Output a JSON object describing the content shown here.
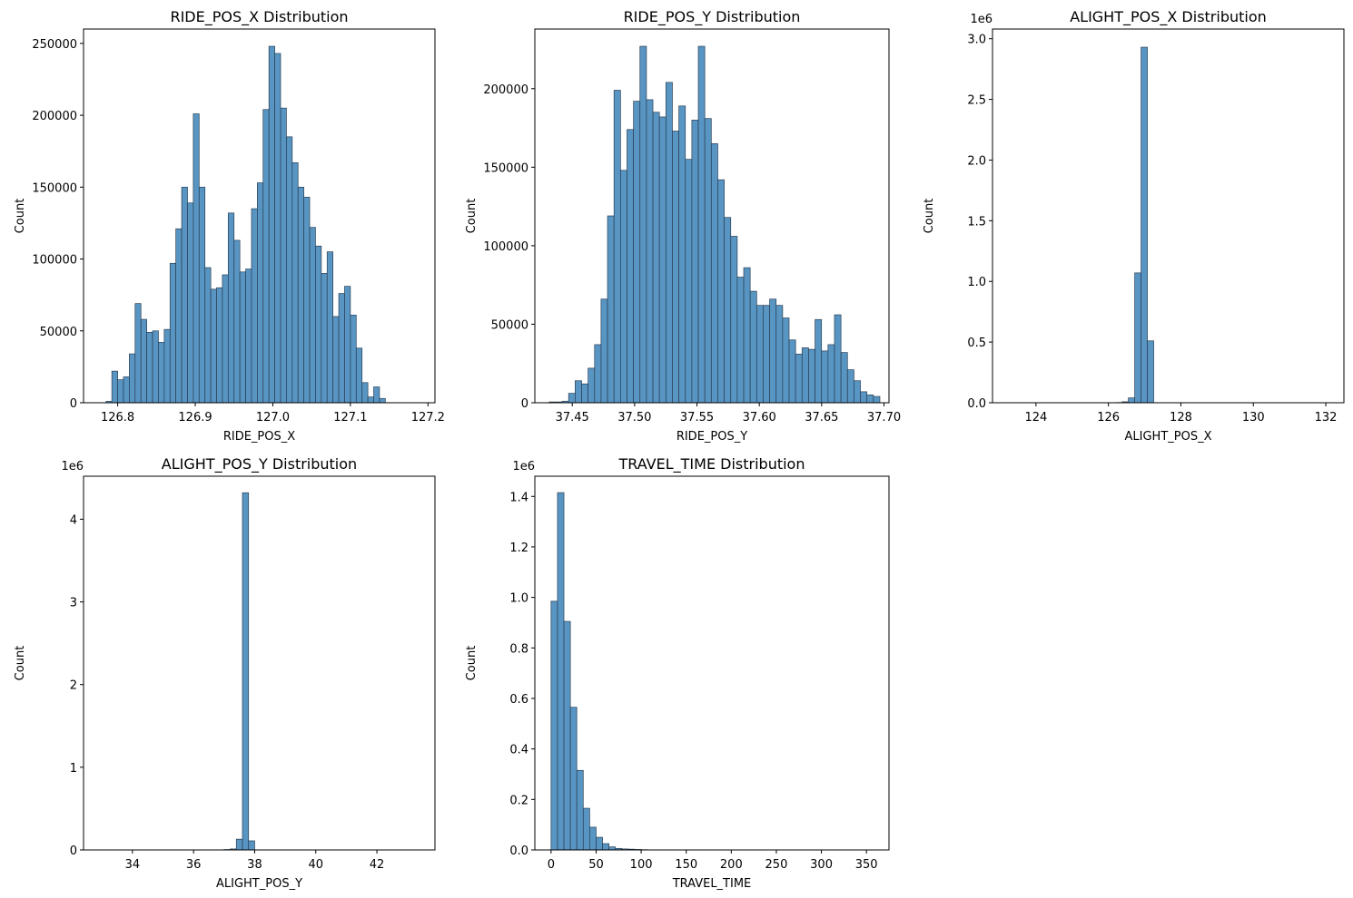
{
  "figure": {
    "label": "histogram grid"
  },
  "chart_data": [
    {
      "type": "bar",
      "title": "RIDE_POS_X Distribution",
      "xlabel": "RIDE_POS_X",
      "ylabel": "Count",
      "xlim": [
        126.756,
        127.209
      ],
      "ylim": [
        0,
        260000
      ],
      "xticks": [
        126.8,
        126.9,
        127.0,
        127.1,
        127.2
      ],
      "xtick_labels": [
        "126.8",
        "126.9",
        "127.0",
        "127.1",
        "127.2"
      ],
      "yticks": [
        0,
        50000,
        100000,
        150000,
        200000,
        250000
      ],
      "ytick_labels": [
        "0",
        "50000",
        "100000",
        "150000",
        "200000",
        "250000"
      ],
      "offset_text": "",
      "bin_start": 126.7775,
      "bin_width": 0.0075,
      "values": [
        0,
        1000,
        22000,
        16000,
        18000,
        34000,
        69000,
        58000,
        49000,
        50000,
        42000,
        51000,
        97000,
        121000,
        150000,
        139000,
        201000,
        150000,
        94000,
        79000,
        80000,
        89000,
        132000,
        113000,
        91000,
        93000,
        135000,
        153000,
        204000,
        248000,
        243000,
        205000,
        185000,
        167000,
        150000,
        143000,
        122000,
        109000,
        90000,
        105000,
        60000,
        76000,
        81000,
        61000,
        38000,
        14000,
        4000,
        11000,
        3000
      ]
    },
    {
      "type": "bar",
      "title": "RIDE_POS_Y Distribution",
      "xlabel": "RIDE_POS_Y",
      "ylabel": "Count",
      "xlim": [
        37.42,
        37.704
      ],
      "ylim": [
        0,
        238000
      ],
      "xticks": [
        37.45,
        37.5,
        37.55,
        37.6,
        37.65,
        37.7
      ],
      "xtick_labels": [
        "37.45",
        "37.50",
        "37.55",
        "37.60",
        "37.65",
        "37.70"
      ],
      "yticks": [
        0,
        50000,
        100000,
        150000,
        200000
      ],
      "ytick_labels": [
        "0",
        "50000",
        "100000",
        "150000",
        "200000"
      ],
      "offset_text": "",
      "bin_start": 37.4315,
      "bin_width": 0.0052,
      "values": [
        500,
        500,
        1000,
        6000,
        14000,
        12000,
        22000,
        37000,
        66000,
        119000,
        199000,
        148000,
        174000,
        192000,
        227000,
        193000,
        185000,
        182000,
        204000,
        173000,
        189000,
        155000,
        180000,
        227000,
        181000,
        165000,
        142000,
        118000,
        106000,
        80000,
        86000,
        71000,
        62000,
        62000,
        66000,
        62000,
        54000,
        40000,
        31000,
        35000,
        34000,
        53000,
        33000,
        37000,
        56000,
        32000,
        21000,
        14000,
        7000,
        5000,
        4000
      ]
    },
    {
      "type": "bar",
      "title": "ALIGHT_POS_X Distribution",
      "xlabel": "ALIGHT_POS_X",
      "ylabel": "Count",
      "xlim": [
        122.8,
        132.5
      ],
      "ylim": [
        0,
        3.08
      ],
      "xticks": [
        124,
        126,
        128,
        130,
        132
      ],
      "xtick_labels": [
        "124",
        "126",
        "128",
        "130",
        "132"
      ],
      "yticks": [
        0,
        0.5,
        1.0,
        1.5,
        2.0,
        2.5,
        3.0
      ],
      "ytick_labels": [
        "0.0",
        "0.5",
        "1.0",
        "1.5",
        "2.0",
        "2.5",
        "3.0"
      ],
      "offset_text": "1e6",
      "bin_start": 126.2,
      "bin_width": 0.175,
      "values": [
        0.002,
        0.008,
        0.04,
        1.07,
        2.93,
        0.51
      ]
    },
    {
      "type": "bar",
      "title": "ALIGHT_POS_Y Distribution",
      "xlabel": "ALIGHT_POS_Y",
      "ylabel": "Count",
      "xlim": [
        32.4,
        43.9
      ],
      "ylim": [
        0,
        4.52
      ],
      "xticks": [
        34,
        36,
        38,
        40,
        42
      ],
      "xtick_labels": [
        "34",
        "36",
        "38",
        "40",
        "42"
      ],
      "yticks": [
        0,
        1,
        2,
        3,
        4
      ],
      "ytick_labels": [
        "0",
        "1",
        "2",
        "3",
        "4"
      ],
      "offset_text": "1e6",
      "bin_start": 37.0,
      "bin_width": 0.2,
      "values": [
        0.005,
        0.012,
        0.13,
        4.32,
        0.11
      ]
    },
    {
      "type": "bar",
      "title": "TRAVEL_TIME Distribution",
      "xlabel": "TRAVEL_TIME",
      "ylabel": "Count",
      "xlim": [
        -18,
        375
      ],
      "ylim": [
        0,
        1.48
      ],
      "xticks": [
        0,
        50,
        100,
        150,
        200,
        250,
        300,
        350
      ],
      "xtick_labels": [
        "0",
        "50",
        "100",
        "150",
        "200",
        "250",
        "300",
        "350"
      ],
      "yticks": [
        0,
        0.2,
        0.4,
        0.6,
        0.8,
        1.0,
        1.2,
        1.4
      ],
      "ytick_labels": [
        "0.0",
        "0.2",
        "0.4",
        "0.6",
        "0.8",
        "1.0",
        "1.2",
        "1.4"
      ],
      "offset_text": "1e6",
      "bin_start": 0,
      "bin_width": 7.14,
      "values": [
        0.985,
        1.415,
        0.905,
        0.565,
        0.315,
        0.165,
        0.09,
        0.05,
        0.025,
        0.012,
        0.006,
        0.004,
        0.003,
        0.002,
        0.001
      ]
    }
  ]
}
